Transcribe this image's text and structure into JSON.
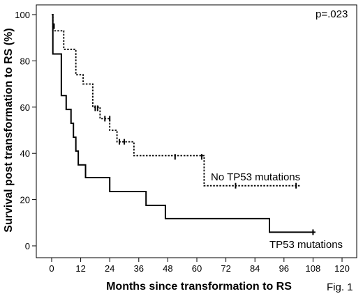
{
  "chart_data": {
    "type": "line",
    "step": true,
    "xlabel": "Months since transformation to RS",
    "ylabel": "Survival post transformation to RS (%)",
    "xlim": [
      0,
      120
    ],
    "ylim": [
      0,
      100
    ],
    "xticks": [
      0,
      12,
      24,
      36,
      48,
      60,
      72,
      84,
      96,
      108,
      120
    ],
    "yticks": [
      0,
      20,
      40,
      60,
      80,
      100
    ],
    "grid": false,
    "legend": "none",
    "pvalue": "p=.023",
    "figure_label": "Fig. 1",
    "series": [
      {
        "name": "No TP53 mutations",
        "style": "dotted",
        "color": "#000000",
        "steps": [
          [
            0,
            100
          ],
          [
            0.5,
            93
          ],
          [
            5,
            85
          ],
          [
            10,
            74
          ],
          [
            13,
            70
          ],
          [
            17,
            60
          ],
          [
            20,
            55
          ],
          [
            24,
            50
          ],
          [
            27,
            45
          ],
          [
            34,
            39
          ],
          [
            47,
            39
          ],
          [
            63,
            26
          ],
          [
            103,
            26
          ]
        ],
        "censored": [
          [
            1,
            95
          ],
          [
            18,
            59.5
          ],
          [
            19,
            59.5
          ],
          [
            22,
            55
          ],
          [
            24,
            55
          ],
          [
            28,
            45
          ],
          [
            30,
            45
          ],
          [
            51,
            38.5
          ],
          [
            62,
            38.5
          ],
          [
            76,
            26
          ],
          [
            101,
            26
          ]
        ]
      },
      {
        "name": "TP53 mutations",
        "style": "solid",
        "color": "#000000",
        "steps": [
          [
            0,
            100
          ],
          [
            0.5,
            83
          ],
          [
            4,
            65
          ],
          [
            6,
            59
          ],
          [
            8,
            53
          ],
          [
            9,
            47
          ],
          [
            10,
            41
          ],
          [
            11,
            35
          ],
          [
            14,
            29.5
          ],
          [
            24,
            23.5
          ],
          [
            39,
            17.5
          ],
          [
            47,
            11.8
          ],
          [
            90,
            5.9
          ],
          [
            109,
            5.9
          ]
        ],
        "censored": [
          [
            108,
            5.9
          ]
        ]
      }
    ]
  }
}
